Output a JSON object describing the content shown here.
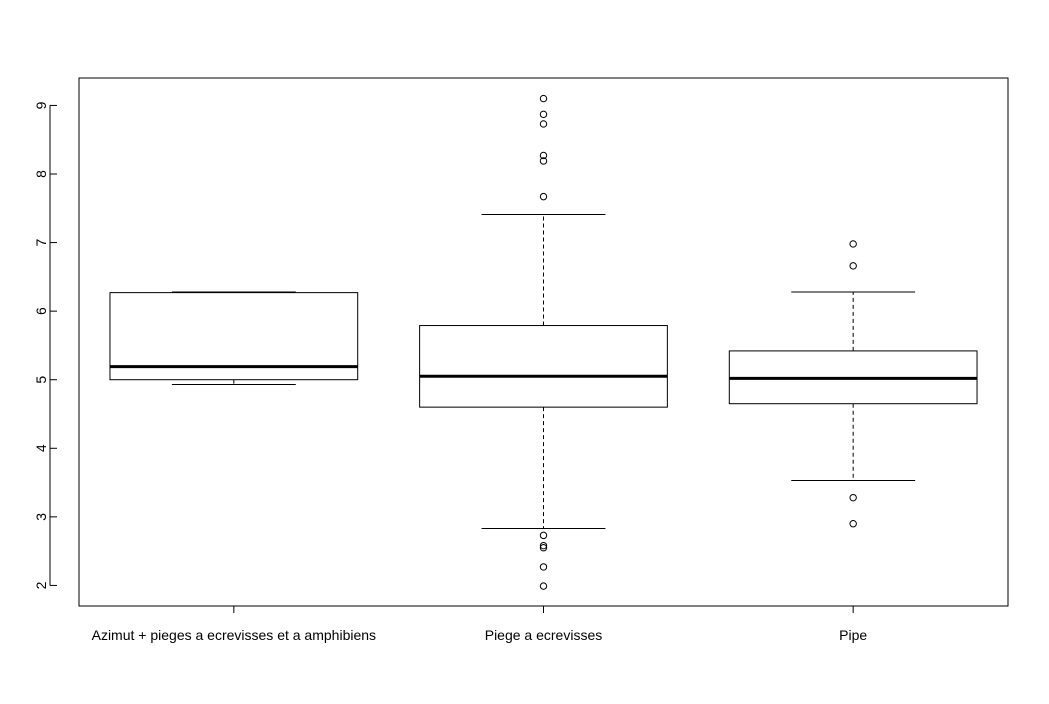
{
  "chart_data": {
    "type": "boxplot",
    "title": "",
    "xlabel": "",
    "ylabel": "",
    "ylim": [
      1.7,
      9.4
    ],
    "yticks": [
      "2",
      "3",
      "4",
      "5",
      "6",
      "7",
      "8",
      "9"
    ],
    "categories": [
      "Azimut + pieges a ecrevisses et a amphibiens",
      "Piege a ecrevisses",
      "Pipe"
    ],
    "boxes": [
      {
        "category": "Azimut + pieges a ecrevisses et a amphibiens",
        "whisker_low": 4.93,
        "q1": 5.0,
        "median": 5.19,
        "q3": 6.27,
        "whisker_high": 6.28,
        "outliers": []
      },
      {
        "category": "Piege a ecrevisses",
        "whisker_low": 2.83,
        "q1": 4.6,
        "median": 5.05,
        "q3": 5.79,
        "whisker_high": 7.41,
        "outliers": [
          2.73,
          2.58,
          2.55,
          2.27,
          1.99,
          7.67,
          8.19,
          8.27,
          8.73,
          8.87,
          9.1
        ]
      },
      {
        "category": "Pipe",
        "whisker_low": 3.53,
        "q1": 4.65,
        "median": 5.02,
        "q3": 5.42,
        "whisker_high": 6.28,
        "outliers": [
          3.28,
          2.9,
          6.66,
          6.98
        ]
      }
    ],
    "grid": false,
    "legend": "none"
  }
}
